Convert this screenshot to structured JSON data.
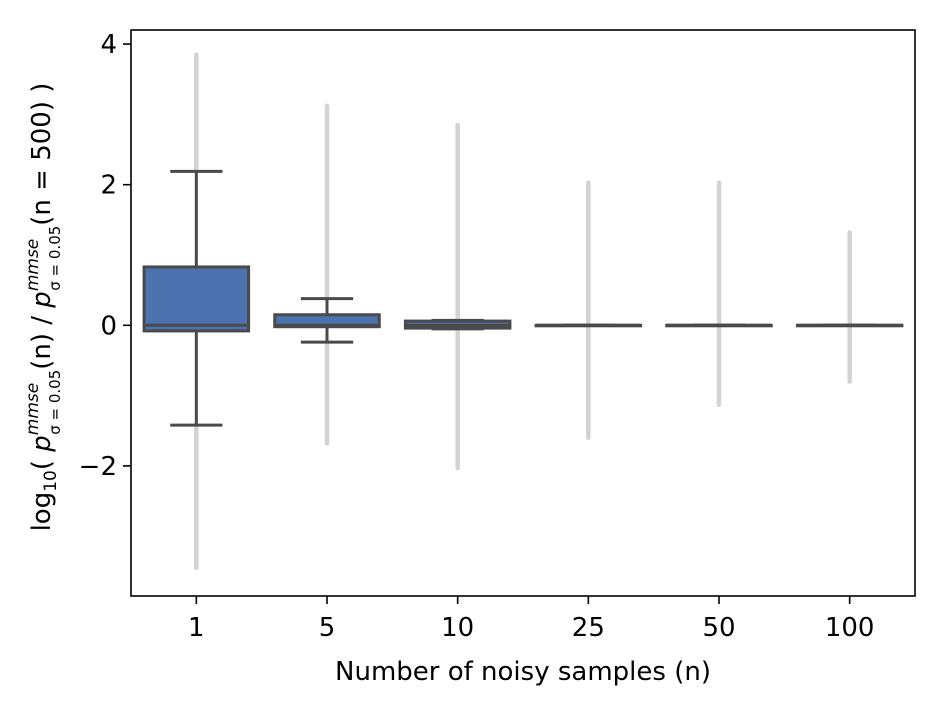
{
  "chart_data": {
    "type": "box",
    "title": "",
    "xlabel": "Number of noisy samples (n)",
    "ylabel": {
      "prefix": "log",
      "prefix_sub": "10",
      "open": "( ",
      "p1": "p",
      "p1_sup": "mmse",
      "p1_sub": "σ = 0.05",
      "p1_arg": "(n)",
      "divide": " / ",
      "p2": "p",
      "p2_sup": "mmse",
      "p2_sub": "σ = 0.05",
      "p2_arg": "(n = 500)",
      "close": " )"
    },
    "categories": [
      "1",
      "5",
      "10",
      "25",
      "50",
      "100"
    ],
    "ylim": [
      -3.85,
      4.2
    ],
    "yticks": [
      -2,
      0,
      2,
      4
    ],
    "ytick_labels": [
      "−2",
      "0",
      "2",
      "4"
    ],
    "box_color": "#4c72b0",
    "line_color": "#4a4a4a",
    "flier_color": "#d3d3d3",
    "boxes": [
      {
        "label": "1",
        "whislo": -1.42,
        "q1": -0.08,
        "med": 0.0,
        "q3": 0.83,
        "whishi": 2.19,
        "flier_lo": -3.45,
        "flier_hi": 3.85
      },
      {
        "label": "5",
        "whislo": -0.24,
        "q1": -0.02,
        "med": 0.0,
        "q3": 0.15,
        "whishi": 0.38,
        "flier_lo": -1.68,
        "flier_hi": 3.12
      },
      {
        "label": "10",
        "whislo": -0.05,
        "q1": -0.04,
        "med": 0.0,
        "q3": 0.06,
        "whishi": 0.07,
        "flier_lo": -2.03,
        "flier_hi": 2.85
      },
      {
        "label": "25",
        "whislo": 0.0,
        "q1": 0.0,
        "med": 0.0,
        "q3": 0.0,
        "whishi": 0.0,
        "flier_lo": -1.6,
        "flier_hi": 2.03
      },
      {
        "label": "50",
        "whislo": 0.0,
        "q1": 0.0,
        "med": 0.0,
        "q3": 0.0,
        "whishi": 0.0,
        "flier_lo": -1.13,
        "flier_hi": 2.03
      },
      {
        "label": "100",
        "whislo": 0.0,
        "q1": 0.0,
        "med": 0.0,
        "q3": 0.0,
        "whishi": 0.0,
        "flier_lo": -0.8,
        "flier_hi": 1.32
      }
    ]
  }
}
